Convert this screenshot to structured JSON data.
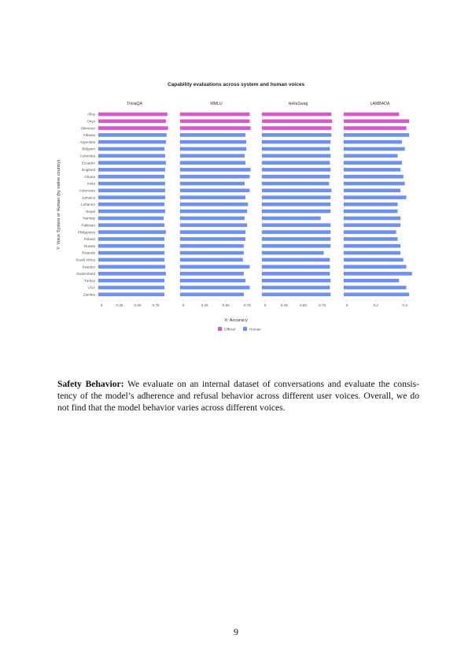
{
  "chart_data": {
    "type": "bar",
    "orientation": "horizontal",
    "title": "Capability evaluations across system and human voices",
    "xlabel": "X: Accuracy",
    "ylabel": "Y: Voice System or Human (by native country)",
    "legend": {
      "position": "bottom",
      "entries": [
        {
          "name": "Official",
          "color": "#d957c8"
        },
        {
          "name": "Human",
          "color": "#6e90ef"
        }
      ]
    },
    "grid": false,
    "categories": [
      "Alloy",
      "Onyx",
      "Shimmer",
      "Albania",
      "Argentina",
      "Belgium",
      "Colombia",
      "Ecuador",
      "England",
      "Ghana",
      "India",
      "Indonesia",
      "Jamaica",
      "Lebanon",
      "Nepal",
      "Norway",
      "Pakistan",
      "Philippines",
      "Poland",
      "Russia",
      "Rwanda",
      "South Africa",
      "Sweden",
      "Switzerland",
      "Turkey",
      "USA",
      "Zambia"
    ],
    "groups": [
      "Official",
      "Official",
      "Official",
      "Human",
      "Human",
      "Human",
      "Human",
      "Human",
      "Human",
      "Human",
      "Human",
      "Human",
      "Human",
      "Human",
      "Human",
      "Human",
      "Human",
      "Human",
      "Human",
      "Human",
      "Human",
      "Human",
      "Human",
      "Human",
      "Human",
      "Human",
      "Human"
    ],
    "panels": [
      {
        "name": "TriviaQA",
        "xlim": [
          0,
          1.0
        ],
        "ticks": [
          "0",
          "0.25",
          "0.50",
          "0.75"
        ],
        "tick_values": [
          0,
          0.25,
          0.5,
          0.75
        ],
        "values": [
          0.91,
          0.89,
          0.92,
          0.9,
          0.89,
          0.87,
          0.88,
          0.89,
          0.88,
          0.87,
          0.88,
          0.88,
          0.88,
          0.87,
          0.88,
          0.86,
          0.87,
          0.89,
          0.87,
          0.87,
          0.87,
          0.87,
          0.88,
          0.89,
          0.87,
          0.87,
          0.87
        ]
      },
      {
        "name": "MMLU",
        "xlim": [
          0,
          0.85
        ],
        "ticks": [
          "0",
          "0.25",
          "0.50",
          "0.75"
        ],
        "tick_values": [
          0,
          0.25,
          0.5,
          0.75
        ],
        "values": [
          0.78,
          0.78,
          0.79,
          0.73,
          0.74,
          0.74,
          0.72,
          0.73,
          0.79,
          0.78,
          0.72,
          0.78,
          0.73,
          0.76,
          0.75,
          0.72,
          0.75,
          0.73,
          0.73,
          0.71,
          0.71,
          0.7,
          0.78,
          0.71,
          0.73,
          0.78,
          0.71
        ]
      },
      {
        "name": "HellaSwag",
        "xlim": [
          0,
          0.95
        ],
        "ticks": [
          "0",
          "0.25",
          "0.50",
          "0.75"
        ],
        "tick_values": [
          0,
          0.25,
          0.5,
          0.75
        ],
        "values": [
          0.87,
          0.88,
          0.87,
          0.87,
          0.86,
          0.85,
          0.86,
          0.85,
          0.86,
          0.85,
          0.84,
          0.87,
          0.86,
          0.86,
          0.86,
          0.73,
          0.86,
          0.86,
          0.86,
          0.86,
          0.77,
          0.85,
          0.85,
          0.85,
          0.86,
          0.85,
          0.86
        ]
      },
      {
        "name": "LAMBADA",
        "xlim": [
          0,
          0.5
        ],
        "ticks": [
          "0",
          "0.2",
          "0.4"
        ],
        "tick_values": [
          0,
          0.2,
          0.4
        ],
        "values": [
          0.36,
          0.43,
          0.41,
          0.43,
          0.38,
          0.4,
          0.35,
          0.38,
          0.37,
          0.39,
          0.4,
          0.37,
          0.41,
          0.35,
          0.35,
          0.37,
          0.37,
          0.34,
          0.35,
          0.37,
          0.37,
          0.39,
          0.41,
          0.45,
          0.36,
          0.41,
          0.43
        ]
      }
    ]
  },
  "paragraph": {
    "heading": "Safety Behavior:",
    "lines": [
      " We evaluate on an internal dataset of conversations and evaluate the consis-",
      "tency of the model’s adherence and refusal behavior across different user voices. Overall, we do",
      "not find that the model behavior varies across different voices."
    ]
  },
  "page_number": "9"
}
